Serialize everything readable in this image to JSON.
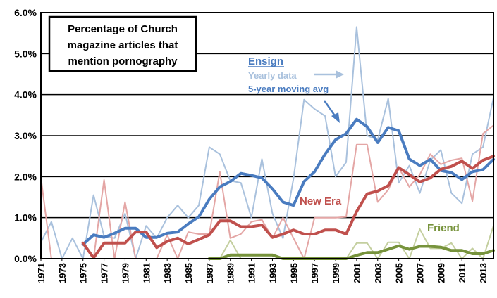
{
  "chart_data": {
    "type": "line",
    "title_lines": [
      "Percentage of Church",
      "magazine articles that",
      "mention pornography"
    ],
    "xlabel": "",
    "ylabel": "",
    "ylim": [
      0,
      6
    ],
    "y_ticks": [
      "0.0%",
      "1.0%",
      "2.0%",
      "3.0%",
      "4.0%",
      "5.0%",
      "6.0%"
    ],
    "x_range": [
      1971,
      2014
    ],
    "x_ticks": [
      1971,
      1973,
      1975,
      1977,
      1979,
      1981,
      1983,
      1985,
      1987,
      1989,
      1991,
      1993,
      1995,
      1997,
      1999,
      2001,
      2003,
      2005,
      2007,
      2009,
      2011,
      2013
    ],
    "grid": "horizontal",
    "annotations": {
      "ensign": "Ensign",
      "yearly": "Yearly data",
      "moving": "5-year moving avg",
      "new_era": "New Era",
      "friend": "Friend"
    },
    "colors": {
      "ensign_avg": "#4a7cc0",
      "ensign_yearly": "#a9c1dd",
      "new_era_avg": "#c0504d",
      "new_era_yearly": "#e4a6a5",
      "friend_avg": "#77933c",
      "friend_yearly": "#c4cf9f"
    },
    "series": [
      {
        "name": "Ensign yearly",
        "x": [
          1971,
          1972,
          1973,
          1974,
          1975,
          1976,
          1977,
          1978,
          1979,
          1980,
          1981,
          1982,
          1983,
          1984,
          1985,
          1986,
          1987,
          1988,
          1989,
          1990,
          1991,
          1992,
          1993,
          1994,
          1995,
          1996,
          1997,
          1998,
          1999,
          2000,
          2001,
          2002,
          2003,
          2004,
          2005,
          2006,
          2007,
          2008,
          2009,
          2010,
          2011,
          2012,
          2013,
          2014
        ],
        "values": [
          0.4,
          0.9,
          0.0,
          0.5,
          0.0,
          1.55,
          0.55,
          0.5,
          1.1,
          0.0,
          0.8,
          0.5,
          1.0,
          1.3,
          1.0,
          1.3,
          2.72,
          2.55,
          1.9,
          1.85,
          1.0,
          2.43,
          1.1,
          0.5,
          1.95,
          3.88,
          3.65,
          3.48,
          2.0,
          2.35,
          5.65,
          3.0,
          2.9,
          3.9,
          1.85,
          2.27,
          1.6,
          2.4,
          2.65,
          1.6,
          1.35,
          2.55,
          2.72,
          3.92
        ]
      },
      {
        "name": "Ensign 5-year moving avg",
        "x": [
          1975,
          1976,
          1977,
          1978,
          1979,
          1980,
          1981,
          1982,
          1983,
          1984,
          1985,
          1986,
          1987,
          1988,
          1989,
          1990,
          1991,
          1992,
          1993,
          1994,
          1995,
          1996,
          1997,
          1998,
          1999,
          2000,
          2001,
          2002,
          2003,
          2004,
          2005,
          2006,
          2007,
          2008,
          2009,
          2010,
          2011,
          2012,
          2013,
          2014
        ],
        "values": [
          0.35,
          0.58,
          0.52,
          0.62,
          0.74,
          0.74,
          0.52,
          0.52,
          0.62,
          0.65,
          0.85,
          1.02,
          1.45,
          1.75,
          1.88,
          2.08,
          2.03,
          1.97,
          1.7,
          1.38,
          1.3,
          1.88,
          2.12,
          2.55,
          2.9,
          3.05,
          3.4,
          3.22,
          2.83,
          3.2,
          3.12,
          2.43,
          2.27,
          2.42,
          2.15,
          2.1,
          1.93,
          2.12,
          2.17,
          2.42
        ]
      },
      {
        "name": "New Era yearly",
        "x": [
          1971,
          1972,
          1973,
          1974,
          1975,
          1976,
          1977,
          1978,
          1979,
          1980,
          1981,
          1982,
          1983,
          1984,
          1985,
          1986,
          1987,
          1988,
          1989,
          1990,
          1991,
          1992,
          1993,
          1994,
          1995,
          1996,
          1997,
          1998,
          1999,
          2000,
          2001,
          2002,
          2003,
          2004,
          2005,
          2006,
          2007,
          2008,
          2009,
          2010,
          2011,
          2012,
          2013,
          2014
        ],
        "values": [
          1.98,
          0.0,
          0.0,
          0.0,
          0.0,
          0.0,
          1.92,
          0.0,
          1.38,
          0.0,
          0.0,
          0.0,
          0.58,
          0.0,
          0.65,
          0.6,
          0.6,
          2.12,
          0.5,
          0.6,
          0.9,
          0.95,
          0.5,
          1.0,
          0.5,
          0.0,
          1.0,
          1.0,
          1.0,
          1.02,
          2.78,
          2.78,
          1.38,
          1.68,
          2.22,
          1.75,
          2.05,
          2.55,
          2.3,
          2.4,
          2.45,
          1.4,
          3.05,
          3.25
        ]
      },
      {
        "name": "New Era 5-year moving avg",
        "x": [
          1975,
          1976,
          1977,
          1978,
          1979,
          1980,
          1981,
          1982,
          1983,
          1984,
          1985,
          1986,
          1987,
          1988,
          1989,
          1990,
          1991,
          1992,
          1993,
          1994,
          1995,
          1996,
          1997,
          1998,
          1999,
          2000,
          2001,
          2002,
          2003,
          2004,
          2005,
          2006,
          2007,
          2008,
          2009,
          2010,
          2011,
          2012,
          2013,
          2014
        ],
        "values": [
          0.38,
          0.02,
          0.38,
          0.38,
          0.38,
          0.65,
          0.65,
          0.27,
          0.42,
          0.5,
          0.36,
          0.47,
          0.58,
          0.92,
          0.92,
          0.78,
          0.78,
          0.82,
          0.52,
          0.6,
          0.7,
          0.6,
          0.6,
          0.7,
          0.7,
          0.6,
          1.15,
          1.58,
          1.65,
          1.78,
          2.22,
          2.05,
          1.87,
          1.97,
          2.18,
          2.25,
          2.38,
          2.2,
          2.4,
          2.5
        ]
      },
      {
        "name": "Friend yearly",
        "x": [
          1987,
          1988,
          1989,
          1990,
          1991,
          1992,
          1993,
          1994,
          1995,
          1996,
          1997,
          1998,
          1999,
          2000,
          2001,
          2002,
          2003,
          2004,
          2005,
          2006,
          2007,
          2008,
          2009,
          2010,
          2011,
          2012,
          2013,
          2014
        ],
        "values": [
          0.0,
          0.0,
          0.45,
          0.0,
          0.0,
          0.0,
          0.0,
          0.0,
          0.0,
          0.0,
          0.0,
          0.0,
          0.0,
          0.0,
          0.38,
          0.38,
          0.0,
          0.4,
          0.4,
          0.0,
          0.72,
          0.25,
          0.25,
          0.38,
          0.0,
          0.25,
          0.0,
          0.8
        ]
      },
      {
        "name": "Friend 5-year moving avg",
        "x": [
          1987,
          1988,
          1989,
          1990,
          1991,
          1992,
          1993,
          1994,
          1995,
          1996,
          1997,
          1998,
          1999,
          2000,
          2001,
          2002,
          2003,
          2004,
          2005,
          2006,
          2007,
          2008,
          2009,
          2010,
          2011,
          2012,
          2013,
          2014
        ],
        "values": [
          0.0,
          0.0,
          0.09,
          0.09,
          0.09,
          0.09,
          0.09,
          0.0,
          0.0,
          0.0,
          0.0,
          0.0,
          0.0,
          0.0,
          0.08,
          0.15,
          0.15,
          0.23,
          0.31,
          0.23,
          0.3,
          0.3,
          0.28,
          0.2,
          0.2,
          0.12,
          0.12,
          0.2
        ]
      }
    ]
  }
}
